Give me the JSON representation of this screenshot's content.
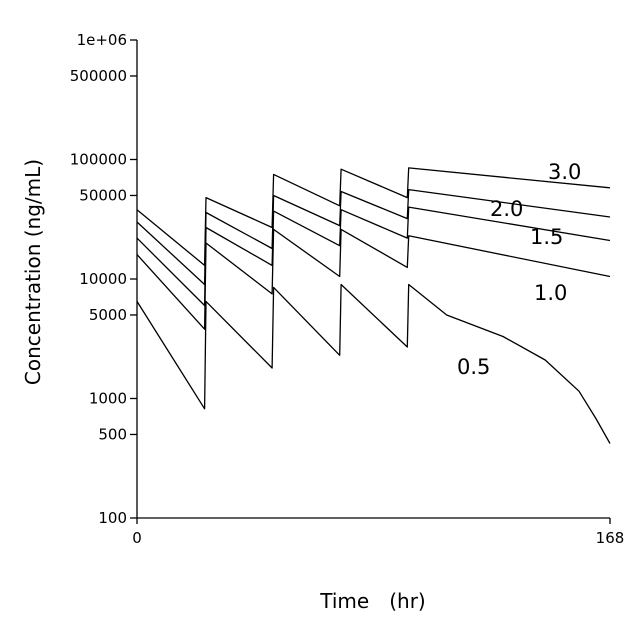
{
  "chart_data": {
    "type": "line",
    "xlabel": "Time　(hr)",
    "ylabel": "Concentration (ng/mL)",
    "y_scale": "log",
    "xlim": [
      0,
      168
    ],
    "ylim": [
      100,
      1000000
    ],
    "x_ticks": [
      {
        "value": 0,
        "label": "0"
      },
      {
        "value": 168,
        "label": "168"
      }
    ],
    "y_ticks": [
      {
        "value": 100,
        "label": "100"
      },
      {
        "value": 500,
        "label": "500"
      },
      {
        "value": 1000,
        "label": "1000"
      },
      {
        "value": 5000,
        "label": "5000"
      },
      {
        "value": 10000,
        "label": "10000"
      },
      {
        "value": 50000,
        "label": "50000"
      },
      {
        "value": 100000,
        "label": "100000"
      },
      {
        "value": 500000,
        "label": "500000"
      },
      {
        "value": 1000000,
        "label": "1e+06"
      }
    ],
    "dose_times": [
      0,
      24,
      48,
      72,
      96
    ],
    "series": [
      {
        "name": "3.0",
        "label": "3.0",
        "points": [
          [
            0,
            38000
          ],
          [
            24,
            13000
          ],
          [
            24.5,
            48000
          ],
          [
            48,
            27000
          ],
          [
            48.5,
            75000
          ],
          [
            72,
            41000
          ],
          [
            72.5,
            83000
          ],
          [
            96,
            48000
          ],
          [
            96.5,
            85000
          ],
          [
            168,
            58000
          ]
        ]
      },
      {
        "name": "2.0",
        "label": "2.0",
        "points": [
          [
            0,
            30000
          ],
          [
            24,
            9000
          ],
          [
            24.5,
            36000
          ],
          [
            48,
            18000
          ],
          [
            48.5,
            50000
          ],
          [
            72,
            28000
          ],
          [
            72.5,
            54000
          ],
          [
            96,
            32000
          ],
          [
            96.5,
            56000
          ],
          [
            168,
            33000
          ]
        ]
      },
      {
        "name": "1.5",
        "label": "1.5",
        "points": [
          [
            0,
            22000
          ],
          [
            24,
            6000
          ],
          [
            24.5,
            27000
          ],
          [
            48,
            13000
          ],
          [
            48.5,
            37000
          ],
          [
            72,
            19000
          ],
          [
            72.5,
            38000
          ],
          [
            96,
            22000
          ],
          [
            96.5,
            40000
          ],
          [
            168,
            21000
          ]
        ]
      },
      {
        "name": "1.0",
        "label": "1.0",
        "points": [
          [
            0,
            16000
          ],
          [
            24,
            3800
          ],
          [
            24.5,
            20000
          ],
          [
            48,
            7500
          ],
          [
            48.5,
            26000
          ],
          [
            72,
            10500
          ],
          [
            72.5,
            26000
          ],
          [
            96,
            12500
          ],
          [
            96.5,
            23000
          ],
          [
            168,
            10500
          ]
        ]
      },
      {
        "name": "0.5",
        "label": "0.5",
        "points": [
          [
            0,
            6500
          ],
          [
            24,
            820
          ],
          [
            24.5,
            6500
          ],
          [
            48,
            1800
          ],
          [
            48.5,
            8500
          ],
          [
            72,
            2300
          ],
          [
            72.5,
            9000
          ],
          [
            96,
            2700
          ],
          [
            96.5,
            9000
          ],
          [
            110,
            5000
          ],
          [
            130,
            3300
          ],
          [
            145,
            2100
          ],
          [
            157,
            1150
          ],
          [
            163,
            680
          ],
          [
            168,
            420
          ]
        ]
      }
    ]
  }
}
